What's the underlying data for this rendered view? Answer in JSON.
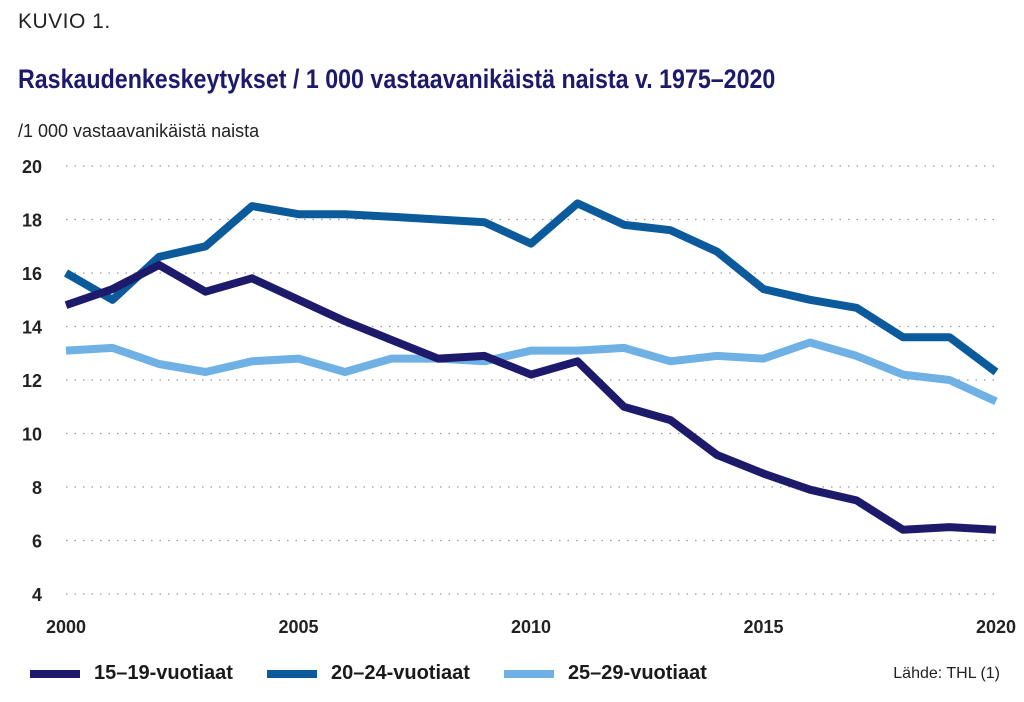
{
  "header": {
    "figure_label": "KUVIO 1.",
    "title": "Raskaudenkeskeytykset / 1 000 vastaavanikäistä naista v. 1975–2020",
    "unit_label": "/1 000 vastaavanikäistä naista"
  },
  "source": "Lähde: THL (1)",
  "chart_data": {
    "type": "line",
    "title": "Raskaudenkeskeytykset / 1 000 vastaavanikäistä naista v. 1975–2020",
    "ylabel": "/1 000 vastaavanikäistä naista",
    "xlabel": "",
    "x": [
      2000,
      2001,
      2002,
      2003,
      2004,
      2005,
      2006,
      2007,
      2008,
      2009,
      2010,
      2011,
      2012,
      2013,
      2014,
      2015,
      2016,
      2017,
      2018,
      2019,
      2020
    ],
    "xlim": [
      2000,
      2020
    ],
    "ylim": [
      4,
      20
    ],
    "x_ticks": [
      "2000",
      "2005",
      "2010",
      "2015",
      "2020"
    ],
    "y_ticks": [
      "4",
      "6",
      "8",
      "10",
      "12",
      "14",
      "16",
      "18",
      "20"
    ],
    "grid": "horizontal-dotted",
    "legend": "bottom",
    "series": [
      {
        "name": "15–19-vuotiaat",
        "color": "#1e1a6b",
        "values": [
          14.8,
          15.4,
          16.3,
          15.3,
          15.8,
          15.0,
          14.2,
          13.5,
          12.8,
          12.9,
          12.2,
          12.7,
          11.0,
          10.5,
          9.2,
          8.5,
          7.9,
          7.5,
          6.4,
          6.5,
          6.4
        ]
      },
      {
        "name": "20–24-vuotiaat",
        "color": "#0a5a9c",
        "values": [
          16.0,
          15.0,
          16.6,
          17.0,
          18.5,
          18.2,
          18.2,
          18.1,
          18.0,
          17.9,
          17.1,
          18.6,
          17.8,
          17.6,
          16.8,
          15.4,
          15.0,
          14.7,
          13.6,
          13.6,
          12.3
        ]
      },
      {
        "name": "25–29-vuotiaat",
        "color": "#6fb1e4",
        "values": [
          13.1,
          13.2,
          12.6,
          12.3,
          12.7,
          12.8,
          12.3,
          12.8,
          12.8,
          12.7,
          13.1,
          13.1,
          13.2,
          12.7,
          12.9,
          12.8,
          13.4,
          12.9,
          12.2,
          12.0,
          11.2
        ]
      }
    ]
  }
}
